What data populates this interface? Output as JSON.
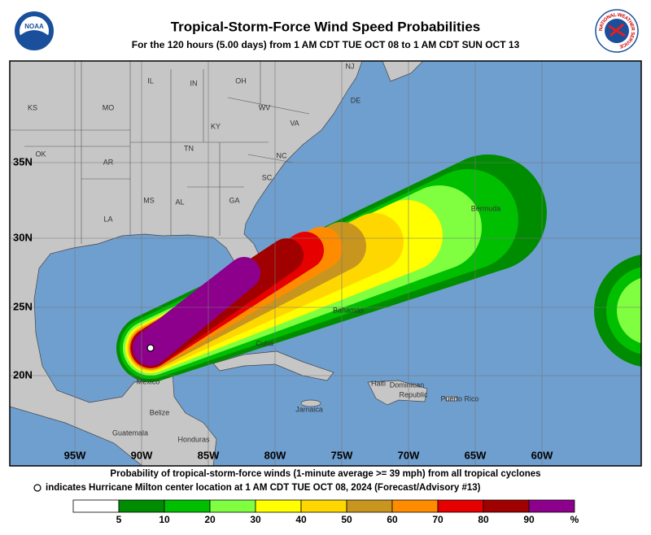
{
  "header": {
    "title": "Tropical-Storm-Force Wind Speed Probabilities",
    "subtitle": "For the 120 hours (5.00 days) from 1 AM CDT TUE OCT 08 to 1 AM CDT SUN OCT 13",
    "logo_left": "NOAA",
    "logo_right": "NATIONAL WEATHER SERVICE"
  },
  "map": {
    "lat_labels": [
      "35N",
      "30N",
      "25N",
      "20N"
    ],
    "lon_labels": [
      "95W",
      "90W",
      "85W",
      "80W",
      "75W",
      "70W",
      "65W",
      "60W"
    ],
    "places": [
      "KS",
      "MO",
      "IL",
      "IN",
      "OH",
      "WV",
      "VA",
      "KY",
      "TN",
      "NC",
      "AR",
      "OK",
      "SC",
      "MS",
      "AL",
      "GA",
      "LA",
      "NJ",
      "DE",
      "Bermuda",
      "Bahamas",
      "Cuba",
      "Haiti",
      "Dominican",
      "Republic",
      "Jamaica",
      "Puerto Rico",
      "Mexico",
      "Belize",
      "Guatemala",
      "Honduras"
    ]
  },
  "footer": {
    "line1": "Probability of tropical-storm-force winds (1-minute average >= 39 mph) from all tropical cyclones",
    "line2": "indicates Hurricane Milton center location at 1 AM CDT TUE OCT 08, 2024 (Forecast/Advisory #13)"
  },
  "legend": {
    "ticks": [
      5,
      10,
      20,
      30,
      40,
      50,
      60,
      70,
      80,
      90
    ],
    "unit": "%",
    "colors": [
      "#ffffff",
      "#008c00",
      "#00bf00",
      "#7fff3f",
      "#ffff00",
      "#ffd700",
      "#c8961e",
      "#ff8c00",
      "#e60000",
      "#a00000",
      "#8c008c"
    ]
  }
}
